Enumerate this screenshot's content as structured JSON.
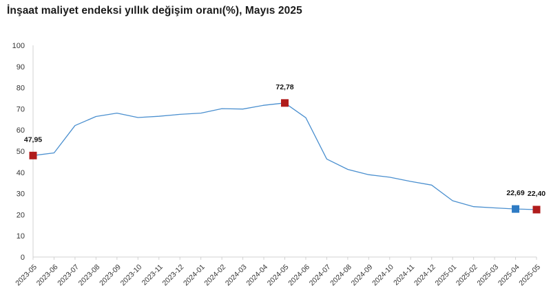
{
  "title": "İnşaat maliyet endeksi yıllık değişim oranı(%), Mayıs 2025",
  "chart_data": {
    "type": "line",
    "title": "İnşaat maliyet endeksi yıllık değişim oranı(%), Mayıs 2025",
    "xlabel": "",
    "ylabel": "",
    "ylim": [
      0,
      100
    ],
    "yticks": [
      0,
      10,
      20,
      30,
      40,
      50,
      60,
      70,
      80,
      90,
      100
    ],
    "grid": false,
    "categories": [
      "2023-05",
      "2023-06",
      "2023-07",
      "2023-08",
      "2023-09",
      "2023-10",
      "2023-11",
      "2023-12",
      "2024-01",
      "2024-02",
      "2024-03",
      "2024-04",
      "2024-05",
      "2024-06",
      "2024-07",
      "2024-08",
      "2024-09",
      "2024-10",
      "2024-11",
      "2024-12",
      "2025-01",
      "2025-02",
      "2025-03",
      "2025-04",
      "2025-05"
    ],
    "series": [
      {
        "values": [
          47.95,
          49.2,
          62.1,
          66.4,
          68.0,
          65.9,
          66.5,
          67.4,
          68.0,
          70.1,
          69.9,
          71.7,
          72.78,
          65.8,
          46.3,
          41.4,
          38.9,
          37.7,
          35.7,
          34.0,
          26.6,
          23.8,
          23.2,
          22.69,
          22.4
        ],
        "color": "#4a8fcf"
      }
    ],
    "markers": [
      {
        "index": 0,
        "value": 47.95,
        "label": "47,95",
        "color": "#b01c1c"
      },
      {
        "index": 12,
        "value": 72.78,
        "label": "72,78",
        "color": "#b01c1c"
      },
      {
        "index": 23,
        "value": 22.69,
        "label": "22,69",
        "color": "#2e7bc4"
      },
      {
        "index": 24,
        "value": 22.4,
        "label": "22,40",
        "color": "#b01c1c"
      }
    ]
  }
}
